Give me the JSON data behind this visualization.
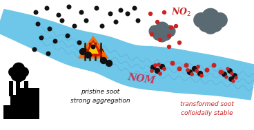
{
  "bg_color": "#ffffff",
  "river_color": "#6ec6e8",
  "black_soot_color": "#111111",
  "red_soot_color": "#cc2222",
  "cloud_color": "#5a6a72",
  "no2_color": "#cc2222",
  "nom_color": "#cc3355",
  "text_pristine": "pristine soot\nstrong aggregation",
  "text_transformed": "transformed soot\ncolloidally stable",
  "text_no2": "NO$_2$",
  "text_nom": "NOM",
  "pristine_text_color": "#111111",
  "transformed_text_color": "#cc2222",
  "figsize": [
    3.68,
    1.89
  ],
  "dpi": 100
}
